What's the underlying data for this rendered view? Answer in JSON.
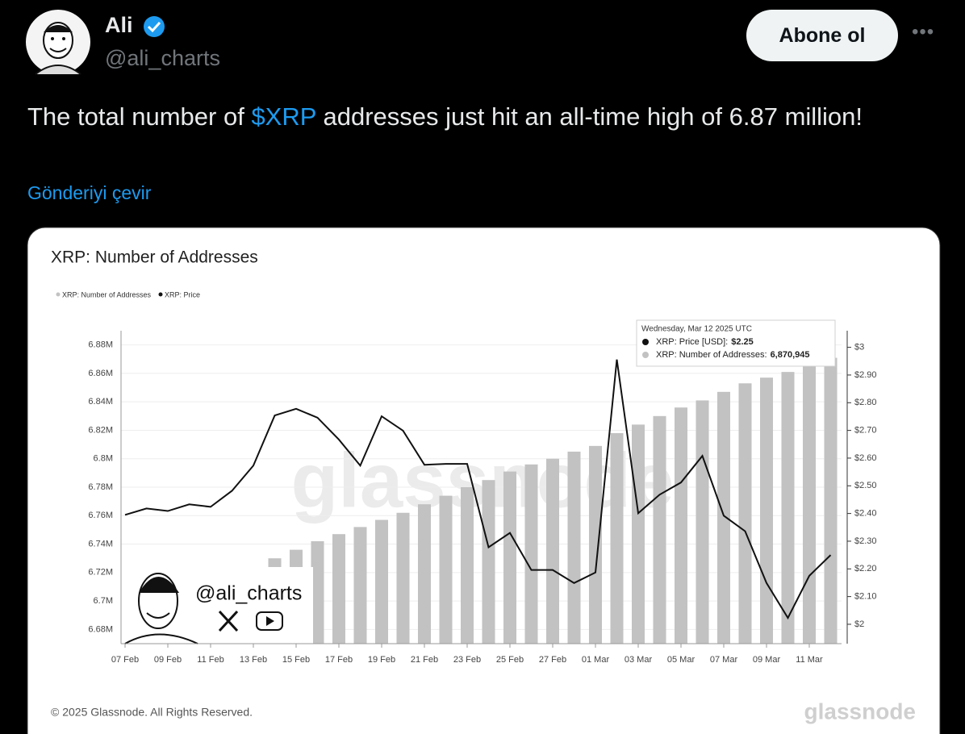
{
  "tweet": {
    "author_name": "Ali",
    "handle": "@ali_charts",
    "follow_button": "Abone ol",
    "text_parts": [
      "The total number of ",
      "$XRP",
      " addresses just hit an all-time high of 6.87 million!"
    ],
    "translate_link": "Gönderiyi çevir"
  },
  "chart_data": {
    "type": "bar",
    "title": "XRP: Number of Addresses",
    "categories": [
      "07 Feb",
      null,
      "09 Feb",
      null,
      "11 Feb",
      null,
      "13 Feb",
      null,
      "15 Feb",
      null,
      "17 Feb",
      null,
      "19 Feb",
      null,
      "21 Feb",
      null,
      "23 Feb",
      null,
      "25 Feb",
      null,
      "27 Feb",
      null,
      "01 Mar",
      null,
      "03 Mar",
      null,
      "05 Mar",
      null,
      "07 Mar",
      null,
      "09 Mar",
      null,
      "11 Mar",
      null
    ],
    "series": [
      {
        "name": "XRP: Number of Addresses",
        "color": "#c2c2c2",
        "values": [
          null,
          null,
          null,
          null,
          null,
          null,
          null,
          6730000,
          6736000,
          6742000,
          6747000,
          6752000,
          6757000,
          6762000,
          6768000,
          6774000,
          6780000,
          6785000,
          6791000,
          6796000,
          6800000,
          6805000,
          6809000,
          6818000,
          6824000,
          6830000,
          6836000,
          6841000,
          6847000,
          6853000,
          6857000,
          6861000,
          6866000,
          6870945
        ]
      },
      {
        "name": "XRP: Price",
        "type": "line",
        "axis": "y2",
        "color": "#111111",
        "values": [
          2.395,
          2.418,
          2.409,
          2.433,
          2.424,
          2.482,
          2.573,
          2.754,
          2.778,
          2.746,
          2.667,
          2.573,
          2.751,
          2.699,
          2.576,
          2.579,
          2.579,
          2.278,
          2.33,
          2.196,
          2.196,
          2.149,
          2.187,
          2.956,
          2.401,
          2.468,
          2.512,
          2.608,
          2.392,
          2.336,
          2.149,
          2.023,
          2.175,
          2.25
        ]
      }
    ],
    "ylim": [
      6670000,
      6890000
    ],
    "yticks": [
      {
        "value": 6680000,
        "label": "6.68M"
      },
      {
        "value": 6700000,
        "label": "6.7M"
      },
      {
        "value": 6720000,
        "label": "6.72M"
      },
      {
        "value": 6740000,
        "label": "6.74M"
      },
      {
        "value": 6760000,
        "label": "6.76M"
      },
      {
        "value": 6780000,
        "label": "6.78M"
      },
      {
        "value": 6800000,
        "label": "6.8M"
      },
      {
        "value": 6820000,
        "label": "6.82M"
      },
      {
        "value": 6840000,
        "label": "6.84M"
      },
      {
        "value": 6860000,
        "label": "6.86M"
      },
      {
        "value": 6880000,
        "label": "6.88M"
      }
    ],
    "y2lim": [
      1.93,
      3.06
    ],
    "y2ticks": [
      {
        "value": 2,
        "label": "$2"
      },
      {
        "value": 2.1,
        "label": "$2.10"
      },
      {
        "value": 2.2,
        "label": "$2.20"
      },
      {
        "value": 2.3,
        "label": "$2.30"
      },
      {
        "value": 2.4,
        "label": "$2.40"
      },
      {
        "value": 2.5,
        "label": "$2.50"
      },
      {
        "value": 2.6,
        "label": "$2.60"
      },
      {
        "value": 2.7,
        "label": "$2.70"
      },
      {
        "value": 2.8,
        "label": "$2.80"
      },
      {
        "value": 2.9,
        "label": "$2.90"
      },
      {
        "value": 3,
        "label": "$3"
      }
    ],
    "grid": true,
    "tooltip": {
      "date": "Wednesday, Mar 12 2025 UTC",
      "price_label": "XRP: Price [USD]:",
      "price_value": "$2.25",
      "addresses_label": "XRP: Number of Addresses:",
      "addresses_value": "6,870,945"
    },
    "watermark": "glassnode",
    "overlay_handle": "@ali_charts",
    "footer": "© 2025 Glassnode. All Rights Reserved.",
    "logo": "glassnode"
  }
}
